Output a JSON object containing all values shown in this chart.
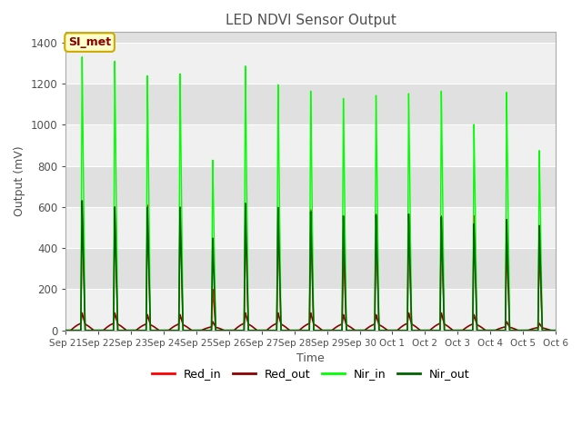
{
  "title": "LED NDVI Sensor Output",
  "xlabel": "Time",
  "ylabel": "Output (mV)",
  "ylim": [
    0,
    1450
  ],
  "title_color": "#505050",
  "axis_label_color": "#505050",
  "tick_label_color": "#505050",
  "legend_labels": [
    "Red_in",
    "Red_out",
    "Nir_in",
    "Nir_out"
  ],
  "legend_colors": [
    "#ff0000",
    "#8b0000",
    "#00ff00",
    "#006400"
  ],
  "annotation_text": "SI_met",
  "annotation_bg": "#ffffcc",
  "annotation_border": "#ccaa00",
  "plot_bg_light": "#f0f0f0",
  "plot_bg_dark": "#e0e0e0",
  "spike_days": [
    0.5,
    1.5,
    2.5,
    3.5,
    4.5,
    5.5,
    6.5,
    7.5,
    8.5,
    9.5,
    10.5,
    11.5,
    12.5,
    13.5,
    14.5
  ],
  "red_in_peaks": [
    630,
    600,
    610,
    600,
    200,
    550,
    590,
    590,
    400,
    570,
    570,
    560,
    560,
    410,
    400
  ],
  "red_out_peaks": [
    50,
    50,
    45,
    45,
    25,
    50,
    50,
    50,
    45,
    45,
    50,
    50,
    45,
    25,
    20
  ],
  "nir_in_peaks": [
    1330,
    1310,
    1240,
    1250,
    830,
    1290,
    1200,
    1170,
    1135,
    1150,
    1160,
    1170,
    1005,
    1160,
    875
  ],
  "nir_out_peaks": [
    630,
    600,
    600,
    600,
    450,
    620,
    600,
    580,
    560,
    565,
    570,
    555,
    520,
    540,
    510
  ],
  "x_tick_labels": [
    "Sep 21",
    "Sep 22",
    "Sep 23",
    "Sep 24",
    "Sep 25",
    "Sep 26",
    "Sep 27",
    "Sep 28",
    "Sep 29",
    "Sep 30",
    "Oct 1",
    "Oct 2",
    "Oct 3",
    "Oct 4",
    "Oct 5",
    "Oct 6"
  ],
  "x_tick_positions": [
    0,
    1,
    2,
    3,
    4,
    5,
    6,
    7,
    8,
    9,
    10,
    11,
    12,
    13,
    14,
    15
  ]
}
